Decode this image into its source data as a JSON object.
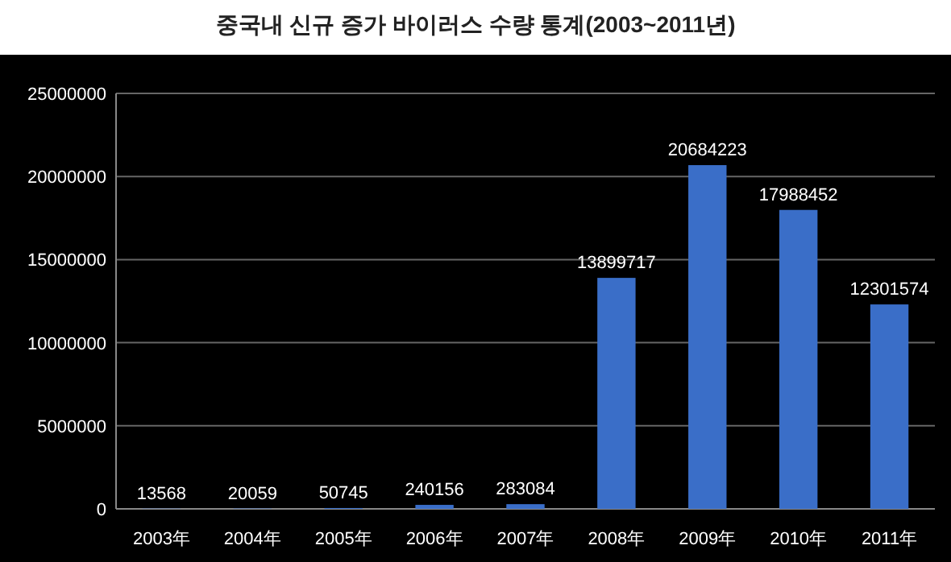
{
  "chart_data": {
    "type": "bar",
    "title": "중국내 신규 증가 바이러스 수량 통계(2003~2011년)",
    "categories": [
      "2003年",
      "2004年",
      "2005年",
      "2006年",
      "2007年",
      "2008年",
      "2009年",
      "2010年",
      "2011年"
    ],
    "values": [
      13568,
      20059,
      50745,
      240156,
      283084,
      13899717,
      20684223,
      17988452,
      12301574
    ],
    "color": "#3a6ec8",
    "ylim": [
      0,
      25000000
    ],
    "yticks": [
      0,
      5000000,
      10000000,
      15000000,
      20000000,
      25000000
    ],
    "grid": "y",
    "data_labels": true
  }
}
